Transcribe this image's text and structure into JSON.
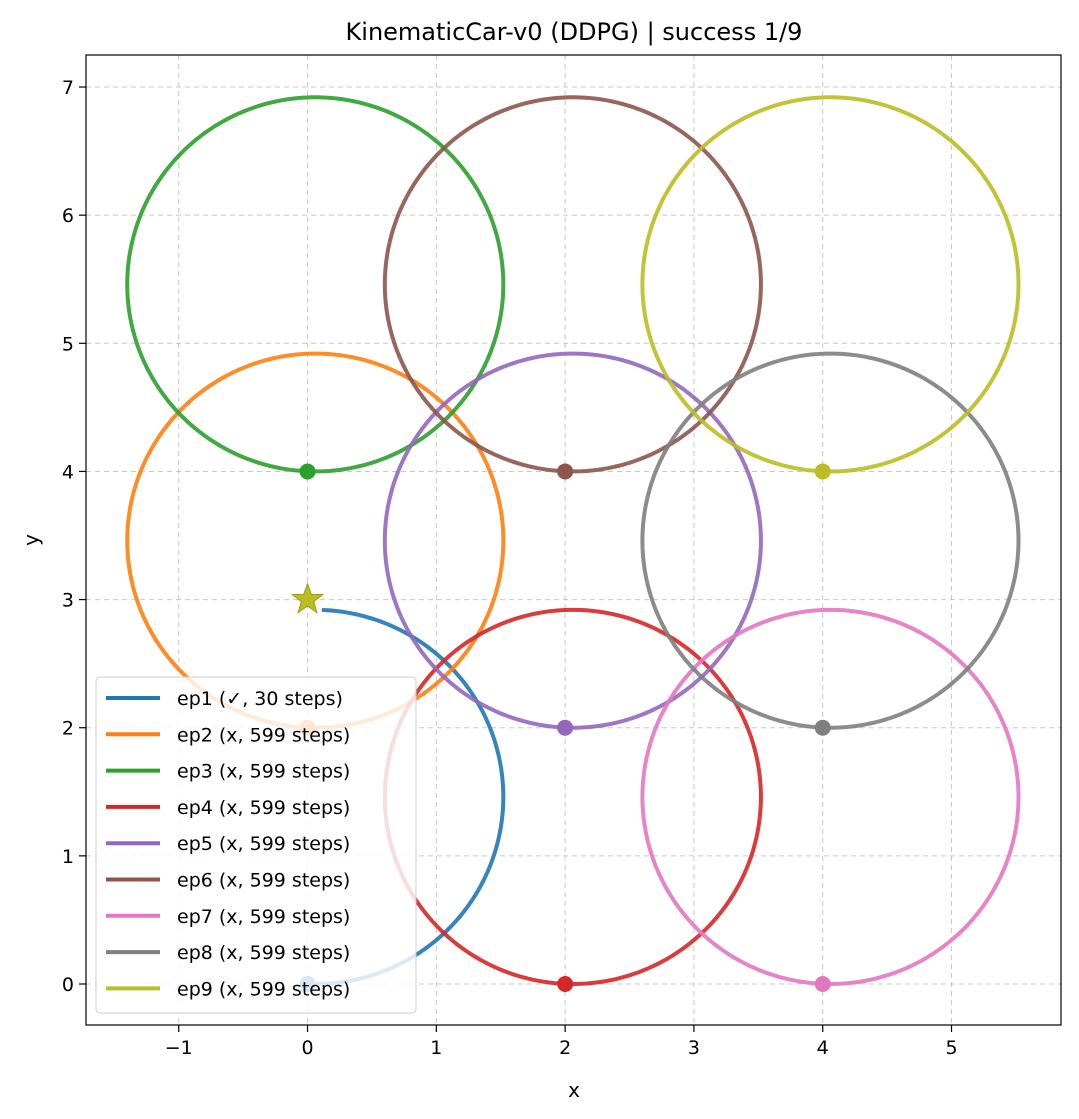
{
  "chart_data": {
    "type": "line",
    "title": "KinematicCar-v0 (DDPG) | success 1/9",
    "xlabel": "x",
    "ylabel": "y",
    "xlim": [
      -1.72,
      5.85
    ],
    "ylim": [
      -0.32,
      7.25
    ],
    "xticks": [
      -1,
      0,
      1,
      2,
      3,
      4,
      5
    ],
    "yticks": [
      0,
      1,
      2,
      3,
      4,
      5,
      6,
      7
    ],
    "xtick_labels": [
      "−1",
      "0",
      "1",
      "2",
      "3",
      "4",
      "5"
    ],
    "ytick_labels": [
      "0",
      "1",
      "2",
      "3",
      "4",
      "5",
      "6",
      "7"
    ],
    "grid": true,
    "legend_position": "lower-left",
    "goal": {
      "x": 0,
      "y": 3,
      "marker": "star",
      "color": "#bcbd22"
    },
    "series": [
      {
        "name": "ep1 (✓, 30 steps)",
        "color": "#1f77b4",
        "start": [
          0,
          0
        ],
        "center": [
          0.06,
          1.46
        ],
        "radius": 1.46,
        "arc_end_deg": 88,
        "success": true
      },
      {
        "name": "ep2 (x, 599 steps)",
        "color": "#ff7f0e",
        "start": [
          0,
          2
        ],
        "center": [
          0.06,
          3.46
        ],
        "radius": 1.46,
        "success": false
      },
      {
        "name": "ep3 (x, 599 steps)",
        "color": "#2ca02c",
        "start": [
          0,
          4
        ],
        "center": [
          0.06,
          5.46
        ],
        "radius": 1.46,
        "success": false
      },
      {
        "name": "ep4 (x, 599 steps)",
        "color": "#d62728",
        "start": [
          2,
          0
        ],
        "center": [
          2.06,
          1.46
        ],
        "radius": 1.46,
        "success": false
      },
      {
        "name": "ep5 (x, 599 steps)",
        "color": "#9467bd",
        "start": [
          2,
          2
        ],
        "center": [
          2.06,
          3.46
        ],
        "radius": 1.46,
        "success": false
      },
      {
        "name": "ep6 (x, 599 steps)",
        "color": "#8c564b",
        "start": [
          2,
          4
        ],
        "center": [
          2.06,
          5.46
        ],
        "radius": 1.46,
        "success": false
      },
      {
        "name": "ep7 (x, 599 steps)",
        "color": "#e377c2",
        "start": [
          4,
          0
        ],
        "center": [
          4.06,
          1.46
        ],
        "radius": 1.46,
        "success": false
      },
      {
        "name": "ep8 (x, 599 steps)",
        "color": "#7f7f7f",
        "start": [
          4,
          2
        ],
        "center": [
          4.06,
          3.46
        ],
        "radius": 1.46,
        "success": false
      },
      {
        "name": "ep9 (x, 599 steps)",
        "color": "#bcbd22",
        "start": [
          4,
          4
        ],
        "center": [
          4.06,
          5.46
        ],
        "radius": 1.46,
        "success": false
      }
    ]
  }
}
